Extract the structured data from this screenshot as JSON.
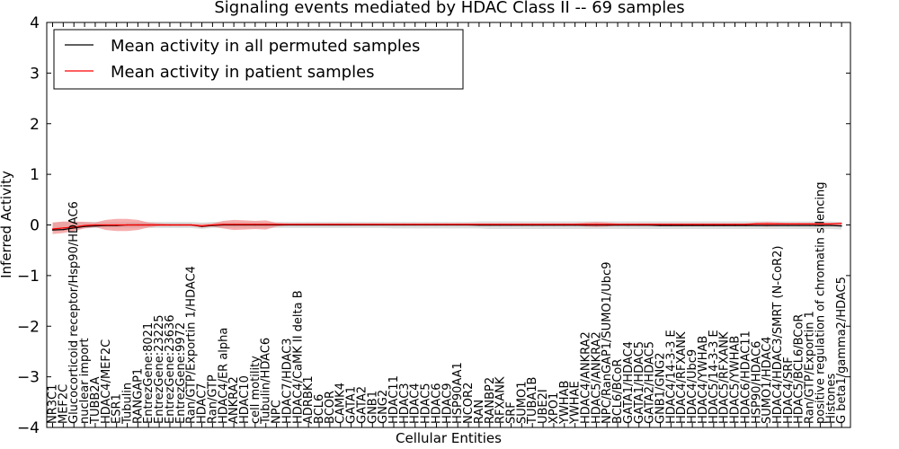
{
  "chart_data": {
    "type": "line",
    "title": "Signaling events mediated by HDAC Class II -- 69 samples",
    "xlabel": "Cellular Entities",
    "ylabel": "Inferred Activity",
    "ylim": [
      -4,
      4
    ],
    "yticks": [
      -4,
      -3,
      -2,
      -1,
      0,
      1,
      2,
      3,
      4
    ],
    "ytick_labels": [
      "−4",
      "−3",
      "−2",
      "−1",
      "0",
      "1",
      "2",
      "3",
      "4"
    ],
    "legend_position": "top-left",
    "categories": [
      "NR3C1",
      "MEF2C",
      "Glucocorticoid receptor/Hsp90/HDAC6",
      "nuclear import",
      "TUBB2A",
      "HDAC4/MEF2C",
      "ESR1",
      "Tubulin",
      "RANGAP1",
      "EntrezGene:8021",
      "EntrezGene:23225",
      "EntrezGene:23636",
      "EntrezGene:9972",
      "Ran/GTP/Exportin 1/HDAC4",
      "HDAC7",
      "Ran/GTP",
      "HDAC4/ER alpha",
      "ANKRA2",
      "HDAC10",
      "cell motility",
      "Tubulin/HDAC6",
      "NPC",
      "HDAC7/HDAC3",
      "HDAC4/CaMK II delta B",
      "ADRBK1",
      "BCL6",
      "BCOR",
      "CAMK4",
      "GATA1",
      "GATA2",
      "GNB1",
      "GNG2",
      "HDAC11",
      "HDAC3",
      "HDAC4",
      "HDAC5",
      "HDAC6",
      "HDAC9",
      "HSP90AA1",
      "NCOR2",
      "RAN",
      "RANBP2",
      "RFXANK",
      "SRF",
      "SUMO1",
      "TUBA1B",
      "UBE2I",
      "XPO1",
      "YWHAB",
      "YWHAE",
      "HDAC4/ANKRA2",
      "HDAC5/ANKRA2",
      "NPC/RanGAP1/SUMO1/Ubc9",
      "BCL6/BCoR",
      "GATA1/HDAC4",
      "GATA1/HDAC5",
      "GATA2/HDAC5",
      "GNB1/GNG2",
      "HDAC4/14-3-3 E",
      "HDAC4/RFXANK",
      "HDAC4/Ubc9",
      "HDAC4/YWHAB",
      "HDAC5/14-3-3 E",
      "HDAC5/RFXANK",
      "HDAC5/YWHAB",
      "HDAC6/HDAC11",
      "HSP90/HDAC6",
      "SUMO1/HDAC4",
      "HDAC4/HDAC3/SMRT (N-CoR2)",
      "HDAC4/SRF",
      "HDAC5/BCL6/BCoR",
      "Ran/GTP/Exportin 1",
      "positive regulation of chromatin silencing",
      "Histones",
      "G beta1/gamma2/HDAC5"
    ],
    "series": [
      {
        "name": "Mean activity in all permuted samples",
        "color": "#000000",
        "band_color": "#c8c8c8",
        "values": [
          -0.1,
          -0.09,
          -0.06,
          -0.03,
          -0.02,
          -0.01,
          -0.01,
          0,
          0,
          0,
          0,
          0,
          0,
          0,
          -0.03,
          -0.01,
          0,
          0,
          0,
          0,
          0,
          0,
          0,
          0,
          0,
          0,
          0,
          0,
          0,
          0,
          0,
          0,
          0,
          0,
          0,
          0,
          0,
          0,
          0,
          0,
          -0.005,
          -0.005,
          -0.005,
          -0.005,
          -0.005,
          -0.005,
          -0.005,
          -0.005,
          -0.005,
          -0.005,
          -0.005,
          -0.005,
          -0.005,
          -0.005,
          -0.005,
          -0.005,
          -0.005,
          -0.01,
          -0.01,
          -0.01,
          -0.01,
          -0.01,
          -0.01,
          -0.01,
          -0.01,
          -0.01,
          -0.01,
          -0.01,
          -0.01,
          -0.01,
          -0.01,
          -0.01,
          -0.01,
          -0.01,
          -0.02
        ],
        "lower": [
          -0.13,
          -0.12,
          -0.09,
          -0.07,
          -0.06,
          -0.06,
          -0.06,
          -0.06,
          -0.06,
          -0.06,
          -0.06,
          -0.06,
          -0.06,
          -0.06,
          -0.08,
          -0.06,
          -0.06,
          -0.06,
          -0.06,
          -0.06,
          -0.06,
          -0.06,
          -0.06,
          -0.06,
          -0.06,
          -0.06,
          -0.06,
          -0.06,
          -0.06,
          -0.06,
          -0.06,
          -0.06,
          -0.07,
          -0.07,
          -0.07,
          -0.07,
          -0.07,
          -0.07,
          -0.07,
          -0.07,
          -0.07,
          -0.08,
          -0.08,
          -0.08,
          -0.08,
          -0.08,
          -0.08,
          -0.08,
          -0.08,
          -0.08,
          -0.08,
          -0.08,
          -0.08,
          -0.08,
          -0.08,
          -0.08,
          -0.08,
          -0.08,
          -0.08,
          -0.08,
          -0.08,
          -0.08,
          -0.08,
          -0.08,
          -0.08,
          -0.08,
          -0.08,
          -0.08,
          -0.08,
          -0.08,
          -0.08,
          -0.08,
          -0.08,
          -0.08,
          -0.09
        ],
        "upper": [
          0.05,
          0.06,
          0.06,
          0.06,
          0.06,
          0.06,
          0.06,
          0.06,
          0.06,
          0.06,
          0.06,
          0.06,
          0.06,
          0.06,
          0.05,
          0.06,
          0.06,
          0.06,
          0.06,
          0.06,
          0.06,
          0.06,
          0.06,
          0.06,
          0.06,
          0.06,
          0.06,
          0.06,
          0.06,
          0.06,
          0.06,
          0.06,
          0.06,
          0.06,
          0.06,
          0.06,
          0.06,
          0.06,
          0.06,
          0.06,
          0.07,
          0.07,
          0.07,
          0.07,
          0.07,
          0.07,
          0.07,
          0.07,
          0.07,
          0.07,
          0.07,
          0.07,
          0.07,
          0.07,
          0.07,
          0.07,
          0.07,
          0.07,
          0.07,
          0.07,
          0.07,
          0.07,
          0.07,
          0.07,
          0.07,
          0.07,
          0.07,
          0.07,
          0.07,
          0.07,
          0.07,
          0.07,
          0.07,
          0.07,
          0.06
        ]
      },
      {
        "name": "Mean activity in patient samples",
        "color": "#ff0000",
        "band_color": "#f28b8b",
        "values": [
          -0.08,
          -0.06,
          -0.04,
          -0.01,
          0,
          0,
          0,
          0,
          0,
          0,
          0,
          0,
          0,
          0,
          -0.02,
          0,
          0.01,
          0.01,
          0.01,
          0.01,
          0.01,
          0.01,
          0.01,
          0.01,
          0.01,
          0.01,
          0.01,
          0.01,
          0.01,
          0.01,
          0.01,
          0.01,
          0.01,
          0.01,
          0.01,
          0.01,
          0.01,
          0.01,
          0.01,
          0.01,
          0.01,
          0.01,
          0.01,
          0.01,
          0.01,
          0.01,
          0.01,
          0.01,
          0.01,
          0.01,
          0.01,
          0.01,
          0.01,
          0.01,
          0.01,
          0.01,
          0.01,
          0.01,
          0.01,
          0.01,
          0.01,
          0.01,
          0.01,
          0.01,
          0.01,
          0.01,
          0.02,
          0.02,
          0.02,
          0.02,
          0.02,
          0.02,
          0.02,
          0.02,
          0.03
        ],
        "lower": [
          -0.18,
          -0.16,
          -0.12,
          -0.07,
          -0.04,
          -0.1,
          -0.12,
          -0.12,
          -0.1,
          -0.05,
          -0.02,
          -0.02,
          -0.02,
          -0.02,
          -0.05,
          -0.03,
          -0.07,
          -0.1,
          -0.09,
          -0.08,
          -0.09,
          -0.03,
          -0.01,
          -0.01,
          -0.01,
          -0.01,
          -0.01,
          -0.01,
          -0.01,
          -0.01,
          -0.01,
          -0.01,
          -0.01,
          -0.01,
          -0.01,
          -0.01,
          -0.01,
          -0.01,
          -0.01,
          -0.01,
          -0.01,
          -0.01,
          -0.01,
          -0.01,
          -0.01,
          -0.01,
          -0.01,
          -0.01,
          -0.01,
          -0.01,
          -0.03,
          -0.04,
          -0.03,
          -0.01,
          -0.01,
          -0.01,
          -0.01,
          -0.01,
          -0.01,
          -0.01,
          -0.01,
          -0.01,
          -0.01,
          -0.01,
          -0.01,
          -0.01,
          -0.02,
          -0.03,
          -0.02,
          -0.01,
          -0.01,
          -0.01,
          -0.01,
          -0.01,
          -0.01
        ],
        "upper": [
          0.05,
          0.07,
          0.07,
          0.06,
          0.05,
          0.1,
          0.12,
          0.12,
          0.1,
          0.05,
          0.03,
          0.02,
          0.02,
          0.02,
          0.02,
          0.03,
          0.08,
          0.1,
          0.09,
          0.08,
          0.09,
          0.04,
          0.03,
          0.03,
          0.03,
          0.03,
          0.03,
          0.03,
          0.03,
          0.03,
          0.03,
          0.03,
          0.03,
          0.03,
          0.03,
          0.03,
          0.03,
          0.03,
          0.03,
          0.03,
          0.03,
          0.03,
          0.03,
          0.03,
          0.03,
          0.03,
          0.03,
          0.03,
          0.03,
          0.03,
          0.05,
          0.06,
          0.05,
          0.03,
          0.03,
          0.03,
          0.03,
          0.03,
          0.03,
          0.03,
          0.03,
          0.03,
          0.03,
          0.03,
          0.03,
          0.03,
          0.05,
          0.06,
          0.05,
          0.04,
          0.04,
          0.04,
          0.04,
          0.04,
          0.05
        ]
      }
    ]
  }
}
